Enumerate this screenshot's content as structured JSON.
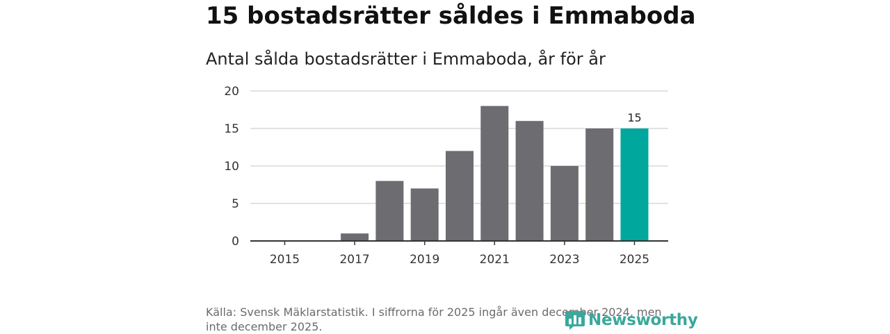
{
  "header": {
    "title": "15 bostadsrätter såldes i Emmaboda",
    "subtitle": "Antal sålda bostadsrätter i Emmaboda, år för år"
  },
  "footer": {
    "source": "Källa: Svensk Mäklarstatistik. I siffrorna för 2025 ingår även december 2024, men inte december 2025.",
    "logo_text": "Newsworthy",
    "logo_icon": "newsworthy-logo-icon"
  },
  "colors": {
    "bar_default": "#6d6c71",
    "bar_highlight": "#00a79d",
    "gridline": "#d9d9d9",
    "axis": "#333333",
    "logo": "#3aa89c"
  },
  "chart_data": {
    "type": "bar",
    "title": "15 bostadsrätter såldes i Emmaboda",
    "subtitle": "Antal sålda bostadsrätter i Emmaboda, år för år",
    "xlabel": "",
    "ylabel": "",
    "categories": [
      "2015",
      "2016",
      "2017",
      "2018",
      "2019",
      "2020",
      "2021",
      "2022",
      "2023",
      "2024",
      "2025"
    ],
    "values": [
      0,
      0,
      1,
      8,
      7,
      12,
      18,
      16,
      10,
      15,
      15
    ],
    "highlight_index": 10,
    "x_tick_labels": [
      "2015",
      "2017",
      "2019",
      "2021",
      "2023",
      "2025"
    ],
    "y_ticks": [
      0,
      5,
      10,
      15,
      20
    ],
    "ylim": [
      0,
      20
    ],
    "grid": true,
    "data_labels": [
      {
        "index": 10,
        "text": "15"
      }
    ]
  }
}
